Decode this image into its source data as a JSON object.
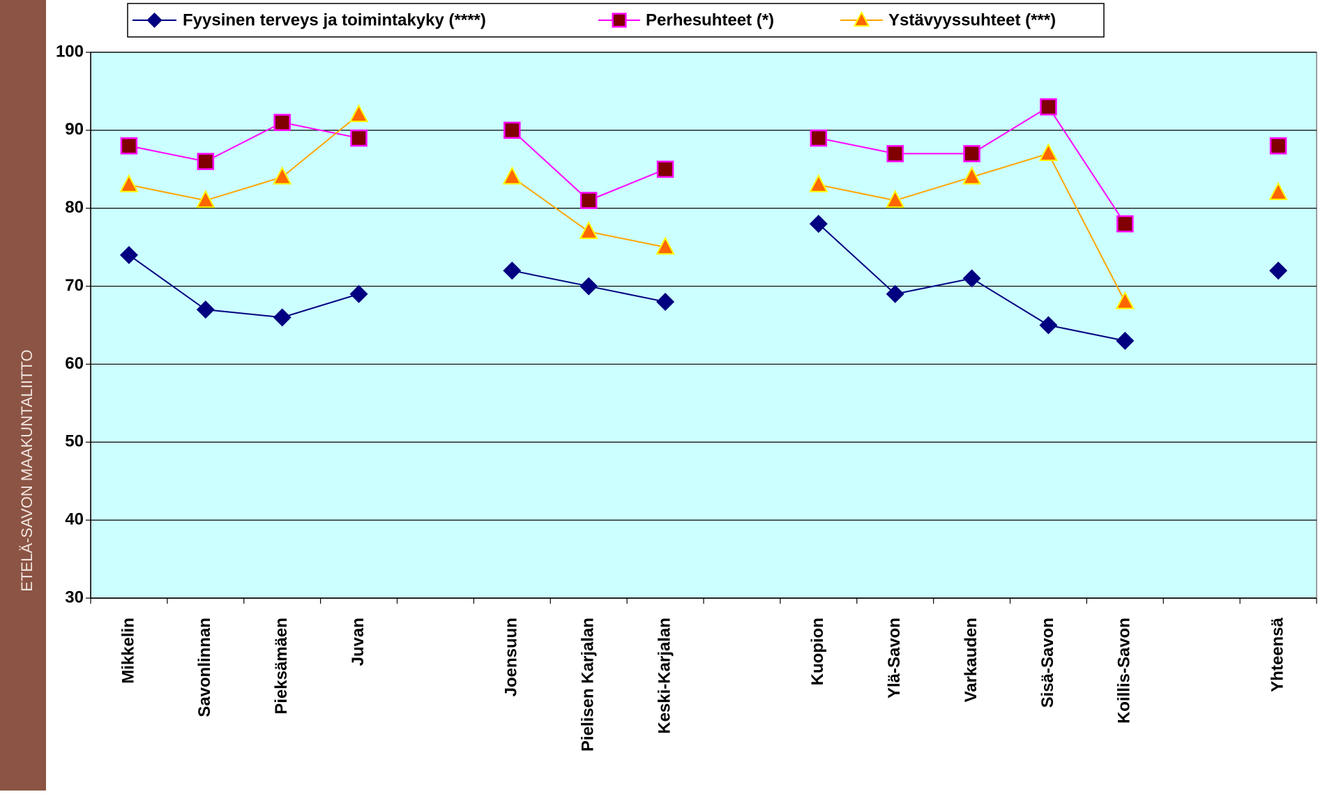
{
  "sidebar_text": "ETELÄ-SAVON MAAKUNTALIITTO",
  "chart_data": {
    "type": "line",
    "categories": [
      "Mikkelin",
      "Savonlinnan",
      "Pieksämäen",
      "Juvan",
      null,
      "Joensuun",
      "Pielisen Karjalan",
      "Keski-Karjalan",
      null,
      "Kuopion",
      "Ylä-Savon",
      "Varkauden",
      "Sisä-Savon",
      "Koillis-Savon",
      null,
      "Yhteensä"
    ],
    "series": [
      {
        "name": "Fyysinen terveys ja toimintakyky (****)",
        "color": "#000080",
        "marker": "diamond",
        "marker_fill": "#000080",
        "values": [
          74,
          67,
          66,
          69,
          null,
          72,
          70,
          68,
          null,
          78,
          69,
          71,
          65,
          63,
          null,
          72
        ]
      },
      {
        "name": "Perhesuhteet (*)",
        "color": "#ff00ff",
        "marker": "square",
        "marker_fill": "#800000",
        "values": [
          88,
          86,
          91,
          89,
          null,
          90,
          81,
          85,
          null,
          89,
          87,
          87,
          93,
          78,
          null,
          88
        ]
      },
      {
        "name": "Ystävyyssuhteet (***)",
        "color": "#ffa500",
        "marker": "triangle",
        "marker_fill": "#ff6600",
        "values": [
          83,
          81,
          84,
          92,
          null,
          84,
          77,
          75,
          null,
          83,
          81,
          84,
          87,
          68,
          null,
          82
        ]
      }
    ],
    "ylim": [
      30,
      100
    ],
    "yticks": [
      30,
      40,
      50,
      60,
      70,
      80,
      90,
      100
    ],
    "grid": true,
    "legend": "top",
    "plot_background": "#ccffff"
  }
}
